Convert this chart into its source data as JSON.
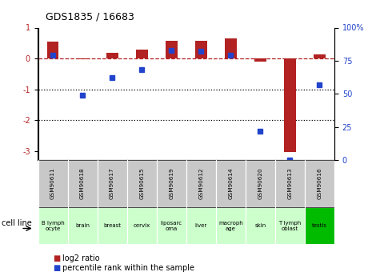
{
  "title": "GDS1835 / 16683",
  "samples": [
    "GSM90611",
    "GSM90618",
    "GSM90617",
    "GSM90615",
    "GSM90619",
    "GSM90612",
    "GSM90614",
    "GSM90620",
    "GSM90613",
    "GSM90616"
  ],
  "cell_lines": [
    "B lymph\nocyte",
    "brain",
    "breast",
    "cervix",
    "liposarc\noma",
    "liver",
    "macroph\nage",
    "skin",
    "T lymph\noblast",
    "testis"
  ],
  "cell_line_colors": [
    "#ccffcc",
    "#ccffcc",
    "#ccffcc",
    "#ccffcc",
    "#ccffcc",
    "#ccffcc",
    "#ccffcc",
    "#ccffcc",
    "#ccffcc",
    "#00cc00"
  ],
  "log2_ratio": [
    0.55,
    -0.03,
    0.17,
    0.28,
    0.57,
    0.58,
    0.65,
    -0.1,
    -3.05,
    0.13
  ],
  "percentile_rank": [
    79,
    49,
    62,
    68,
    83,
    82,
    79,
    22,
    0,
    57
  ],
  "bar_color_red": "#b22222",
  "bar_color_blue": "#2244cc",
  "ylim_left": [
    -3.3,
    1.0
  ],
  "ylim_right": [
    0,
    100
  ],
  "yticks_left": [
    1,
    0,
    -1,
    -2,
    -3
  ],
  "yticks_right": [
    100,
    75,
    50,
    25,
    0
  ],
  "dotted_lines": [
    -1,
    -2
  ],
  "bar_width": 0.4,
  "background_color": "#ffffff",
  "gsm_label_bg": "#c8c8c8",
  "cell_line_bg_default": "#ccffcc",
  "cell_line_bg_highlight": "#00bb00",
  "highlight_index": 9,
  "title_fontsize": 9,
  "axis_fontsize": 7,
  "legend_fontsize": 7
}
